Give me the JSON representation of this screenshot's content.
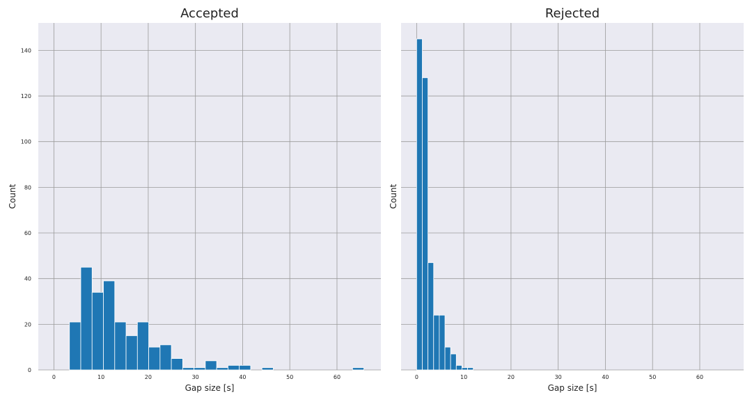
{
  "chart_data": [
    {
      "type": "bar",
      "histogram": true,
      "title": "Accepted",
      "xlabel": "Gap size [s]",
      "ylabel": "Count",
      "xlim": [
        -3.3,
        69.3
      ],
      "ylim": [
        0,
        152
      ],
      "xticks": [
        0,
        10,
        20,
        30,
        40,
        50,
        60
      ],
      "yticks": [
        0,
        20,
        40,
        60,
        80,
        100,
        120,
        140
      ],
      "grid": true,
      "bin_width": 2.4,
      "bins_start": [
        3.3,
        5.7,
        8.1,
        10.5,
        12.9,
        15.3,
        17.7,
        20.1,
        22.5,
        24.9,
        27.3,
        29.7,
        32.1,
        34.5,
        36.9,
        39.3,
        41.7,
        44.1,
        46.5,
        48.9,
        51.3,
        53.7,
        56.1,
        58.5,
        60.9,
        63.3
      ],
      "values": [
        21,
        45,
        34,
        39,
        21,
        15,
        21,
        10,
        11,
        5,
        1,
        1,
        4,
        1,
        2,
        2,
        0,
        1,
        0,
        0,
        0,
        0,
        0,
        0,
        0,
        1
      ],
      "color": "#1f77b4"
    },
    {
      "type": "bar",
      "histogram": true,
      "title": "Rejected",
      "xlabel": "Gap size [s]",
      "ylabel": "Count",
      "xlim": [
        -3.3,
        69.3
      ],
      "ylim": [
        0,
        152
      ],
      "xticks": [
        0,
        10,
        20,
        30,
        40,
        50,
        60
      ],
      "yticks": [],
      "grid": true,
      "bin_width": 1.2,
      "bins_start": [
        0.0,
        1.2,
        2.4,
        3.6,
        4.8,
        6.0,
        7.2,
        8.4,
        9.6,
        10.8
      ],
      "values": [
        145,
        128,
        47,
        24,
        24,
        10,
        7,
        2,
        1,
        1
      ],
      "color": "#1f77b4"
    }
  ]
}
